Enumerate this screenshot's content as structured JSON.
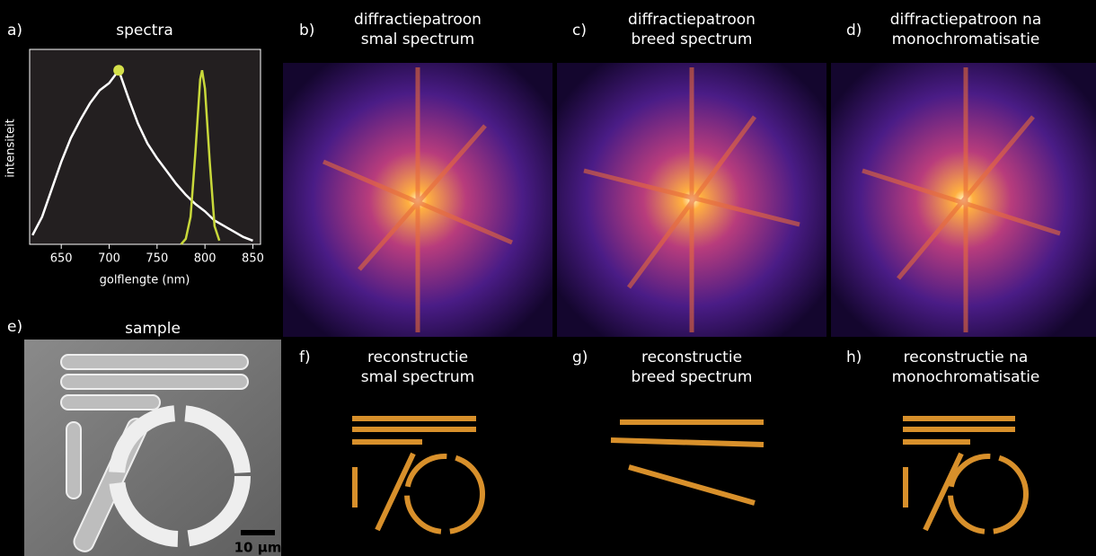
{
  "chart_data": {
    "type": "line",
    "title": "spectra",
    "x_label": "golflengte (nm)",
    "y_label": "intensiteit",
    "xlim": [
      617,
      858
    ],
    "xticks": [
      650,
      700,
      750,
      800,
      850
    ],
    "ylim": [
      0,
      1
    ],
    "series": [
      {
        "name": "breed spectrum",
        "color": "#ffffff",
        "x": [
          620,
          630,
          640,
          650,
          660,
          670,
          680,
          690,
          700,
          710,
          720,
          730,
          740,
          750,
          760,
          770,
          780,
          790,
          800,
          810,
          820,
          830,
          840,
          850
        ],
        "values": [
          0.05,
          0.15,
          0.3,
          0.45,
          0.58,
          0.68,
          0.77,
          0.84,
          0.88,
          0.95,
          0.8,
          0.66,
          0.55,
          0.47,
          0.4,
          0.33,
          0.27,
          0.22,
          0.18,
          0.13,
          0.1,
          0.07,
          0.04,
          0.02
        ]
      },
      {
        "name": "smal spectrum",
        "color": "#c8d83a",
        "x": [
          775,
          780,
          785,
          790,
          795,
          797,
          800,
          805,
          810,
          815
        ],
        "values": [
          0.0,
          0.03,
          0.15,
          0.5,
          0.9,
          0.95,
          0.85,
          0.45,
          0.1,
          0.02
        ]
      }
    ],
    "marker": {
      "series": 0,
      "index": 9,
      "color": "#d4e04a"
    }
  },
  "panels": [
    {
      "letter": "a)"
    },
    {
      "letter": "b)",
      "title": [
        "diffractiepatroon",
        "smal spectrum"
      ]
    },
    {
      "letter": "c)",
      "title": [
        "diffractiepatroon",
        "breed spectrum"
      ]
    },
    {
      "letter": "d)",
      "title": [
        "diffractiepatroon na",
        "monochromatisatie"
      ]
    },
    {
      "letter": "e)",
      "title": [
        "sample"
      ],
      "scale_bar": "10 µm"
    },
    {
      "letter": "f)",
      "title": [
        "reconstructie",
        "smal spectrum"
      ]
    },
    {
      "letter": "g)",
      "title": [
        "reconstructie",
        "breed spectrum"
      ]
    },
    {
      "letter": "h)",
      "title": [
        "reconstructie na",
        "monochromatisatie"
      ]
    }
  ]
}
